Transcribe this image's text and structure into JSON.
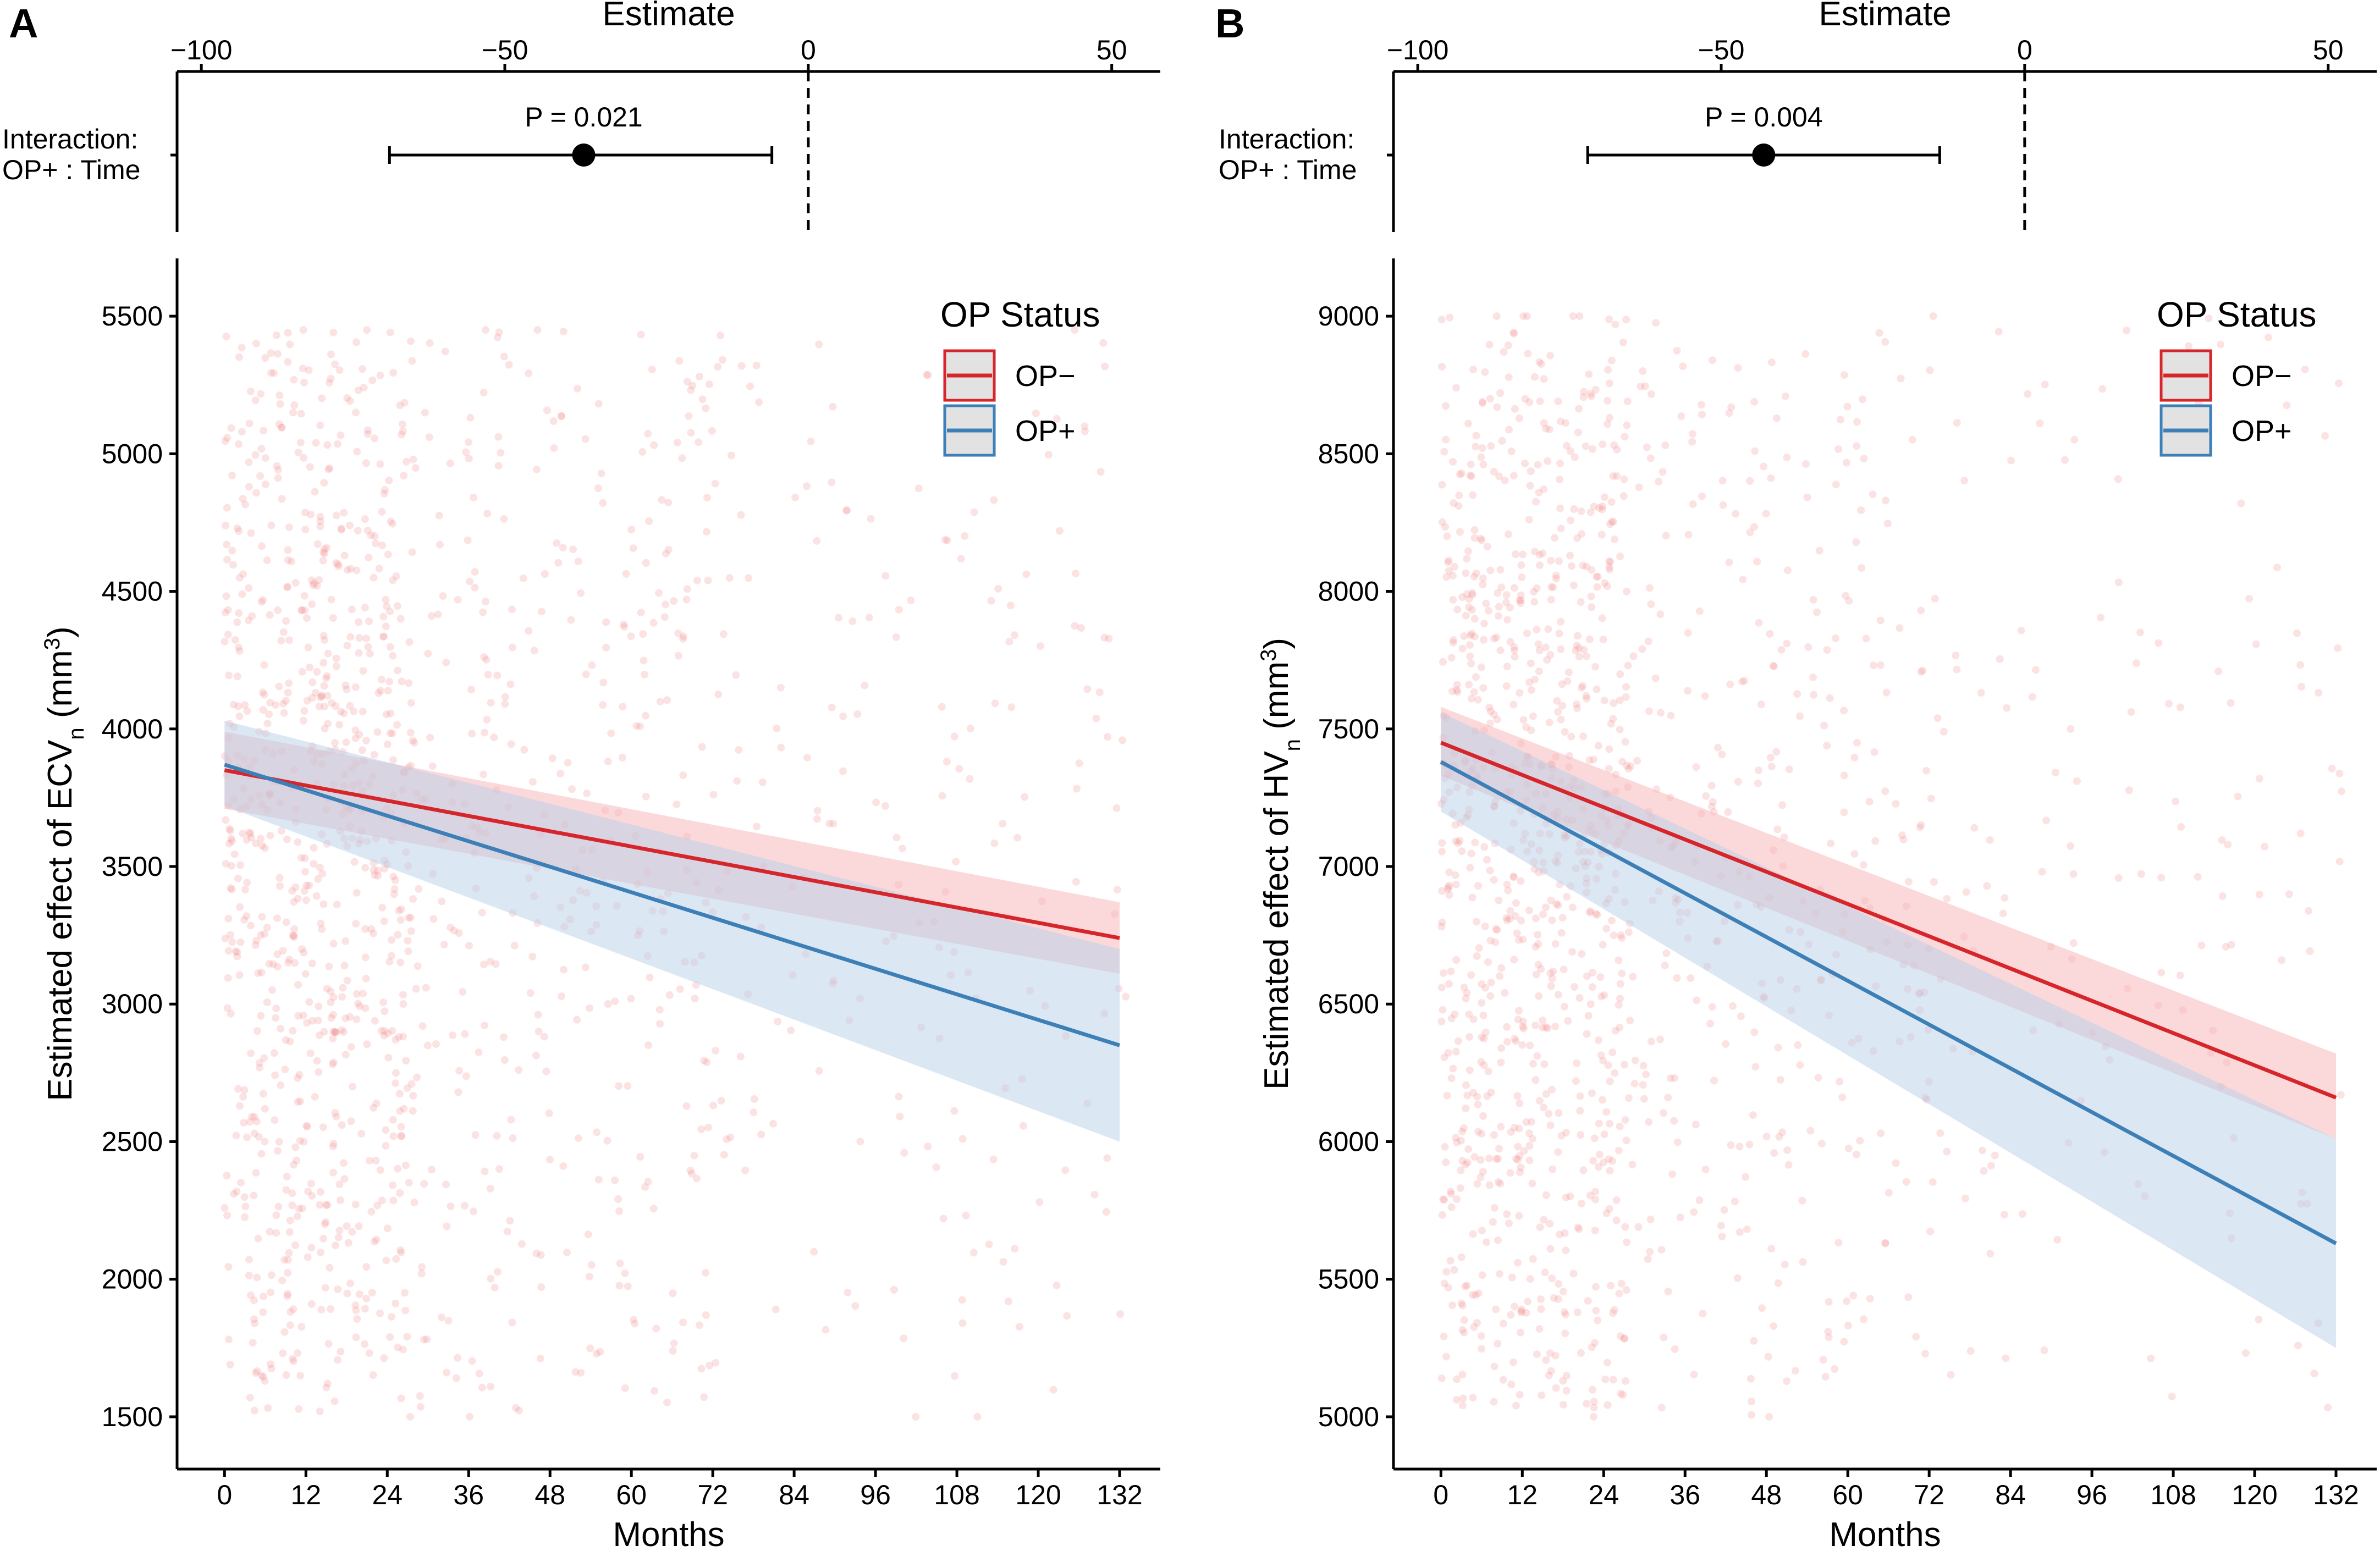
{
  "chart_data": [
    {
      "panel": "A",
      "type": "line",
      "forest": {
        "title": "Estimate",
        "xlim": [
          -104,
          58
        ],
        "ticks": [
          -100,
          -50,
          0,
          50
        ],
        "tick_labels": [
          "−100",
          "−50",
          "0",
          "50"
        ],
        "row_label": [
          "Interaction:",
          "OP+ : Time"
        ],
        "estimate": -37,
        "ci": [
          -69,
          -6
        ],
        "p_text": "P =  0.021",
        "reference": 0
      },
      "main": {
        "xlabel": "Months",
        "ylabel_main": "Estimated effect of ECV",
        "ylabel_sub": "n",
        "ylabel_unit": "(mm",
        "ylabel_sup": "3",
        "ylabel_close": ")",
        "xlim": [
          -7,
          138
        ],
        "ylim": [
          1310,
          5710
        ],
        "xticks": [
          0,
          12,
          24,
          36,
          48,
          60,
          72,
          84,
          96,
          108,
          120,
          132
        ],
        "yticks": [
          1500,
          2000,
          2500,
          3000,
          3500,
          4000,
          4500,
          5000,
          5500
        ],
        "scatter": {
          "n": 1400,
          "seed": 11,
          "ymin": 1500,
          "ymax": 5450,
          "ycenter": 3550,
          "color": "#F08080"
        },
        "series": [
          {
            "name": "OP−",
            "color": "#D7262B",
            "fill": "#F7B4B6",
            "x": [
              0,
              132
            ],
            "y": [
              3850,
              3240
            ],
            "lower": [
              3710,
              3110
            ],
            "upper": [
              3990,
              3370
            ]
          },
          {
            "name": "OP+",
            "color": "#3D7FB7",
            "fill": "#B7D0E8",
            "x": [
              0,
              132
            ],
            "y": [
              3870,
              2850
            ],
            "lower": [
              3720,
              2500
            ],
            "upper": [
              4030,
              3200
            ]
          }
        ]
      },
      "legend": {
        "title": "OP Status",
        "items": [
          "OP−",
          "OP+"
        ],
        "position": "top-right"
      }
    },
    {
      "panel": "B",
      "type": "line",
      "forest": {
        "title": "Estimate",
        "xlim": [
          -104,
          58
        ],
        "ticks": [
          -100,
          -50,
          0,
          50
        ],
        "tick_labels": [
          "−100",
          "−50",
          "0",
          "50"
        ],
        "row_label": [
          "Interaction:",
          "OP+ : Time"
        ],
        "estimate": -43,
        "ci": [
          -72,
          -14
        ],
        "p_text": "P =  0.004",
        "reference": 0
      },
      "main": {
        "xlabel": "Months",
        "ylabel_main": "Estimated effect of HV",
        "ylabel_sub": "n",
        "ylabel_unit": "(mm",
        "ylabel_sup": "3",
        "ylabel_close": ")",
        "xlim": [
          -7,
          138
        ],
        "ylim": [
          4810,
          9210
        ],
        "xticks": [
          0,
          12,
          24,
          36,
          48,
          60,
          72,
          84,
          96,
          108,
          120,
          132
        ],
        "yticks": [
          5000,
          5500,
          6000,
          6500,
          7000,
          7500,
          8000,
          8500,
          9000
        ],
        "scatter": {
          "n": 1400,
          "seed": 23,
          "ymin": 5000,
          "ymax": 9000,
          "ycenter": 7100,
          "color": "#F08080"
        },
        "series": [
          {
            "name": "OP−",
            "color": "#D7262B",
            "fill": "#F7B4B6",
            "x": [
              0,
              132
            ],
            "y": [
              7450,
              6160
            ],
            "lower": [
              7330,
              6010
            ],
            "upper": [
              7580,
              6320
            ]
          },
          {
            "name": "OP+",
            "color": "#3D7FB7",
            "fill": "#B7D0E8",
            "x": [
              0,
              132
            ],
            "y": [
              7380,
              5630
            ],
            "lower": [
              7200,
              5250
            ],
            "upper": [
              7560,
              6010
            ]
          }
        ]
      },
      "legend": {
        "title": "OP Status",
        "items": [
          "OP−",
          "OP+"
        ],
        "position": "top-right"
      }
    }
  ]
}
